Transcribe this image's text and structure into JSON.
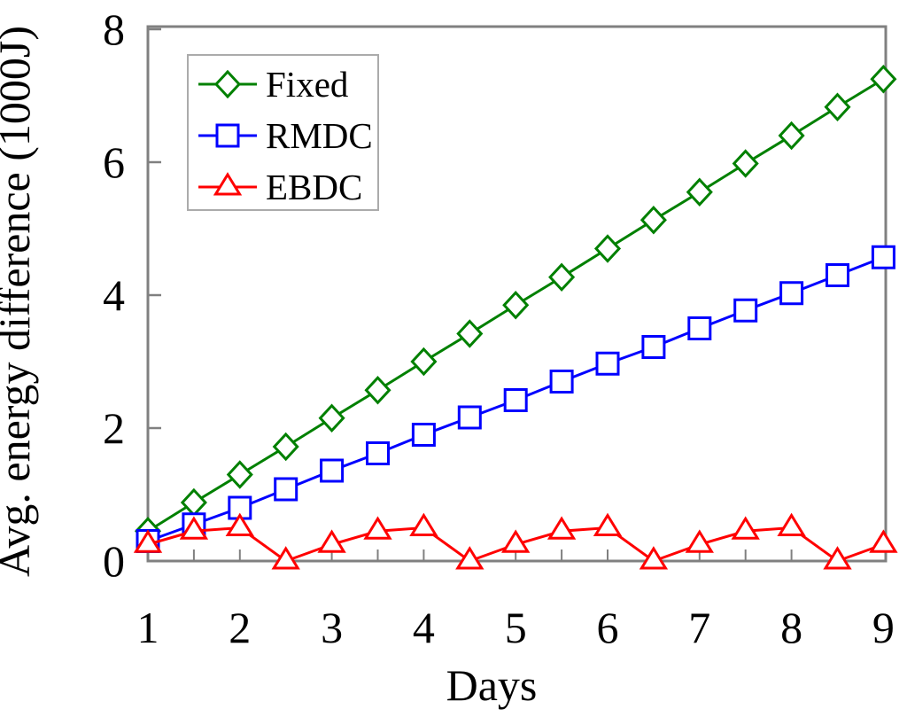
{
  "chart_data": {
    "type": "line",
    "title": "",
    "xlabel": "Days",
    "ylabel": "Avg. energy difference (1000J)",
    "x": [
      1,
      1.5,
      2,
      2.5,
      3,
      3.5,
      4,
      4.5,
      5,
      5.5,
      6,
      6.5,
      7,
      7.5,
      8,
      8.5,
      9
    ],
    "series": [
      {
        "name": "Fixed",
        "color": "#008000",
        "marker": "diamond",
        "values": [
          0.45,
          0.88,
          1.3,
          1.72,
          2.15,
          2.57,
          3.0,
          3.42,
          3.85,
          4.27,
          4.7,
          5.13,
          5.55,
          5.98,
          6.4,
          6.83,
          7.25
        ]
      },
      {
        "name": "RMDC",
        "color": "#0000ff",
        "marker": "square",
        "values": [
          0.3,
          0.55,
          0.8,
          1.08,
          1.36,
          1.62,
          1.9,
          2.16,
          2.42,
          2.7,
          2.97,
          3.22,
          3.5,
          3.77,
          4.03,
          4.3,
          4.57
        ]
      },
      {
        "name": "EBDC",
        "color": "#ff0000",
        "marker": "triangle",
        "values": [
          0.25,
          0.45,
          0.5,
          0.0,
          0.25,
          0.45,
          0.5,
          0.0,
          0.25,
          0.45,
          0.5,
          0.0,
          0.25,
          0.45,
          0.5,
          0.0,
          0.25
        ]
      }
    ],
    "xlim": [
      1,
      9
    ],
    "ylim": [
      0,
      8
    ],
    "x_tick_labels": [
      1,
      2,
      3,
      4,
      5,
      6,
      7,
      8,
      9
    ],
    "x_minor_tick_step": 0.5,
    "y_tick_labels": [
      0,
      2,
      4,
      6,
      8
    ],
    "legend_position": "upper-left",
    "legend_entries": [
      "Fixed",
      "RMDC",
      "EBDC"
    ],
    "grid": false,
    "axis_color": "#808080",
    "legend_border_color": "#ababab",
    "text_color": "#000000",
    "background_color": "#ffffff"
  }
}
